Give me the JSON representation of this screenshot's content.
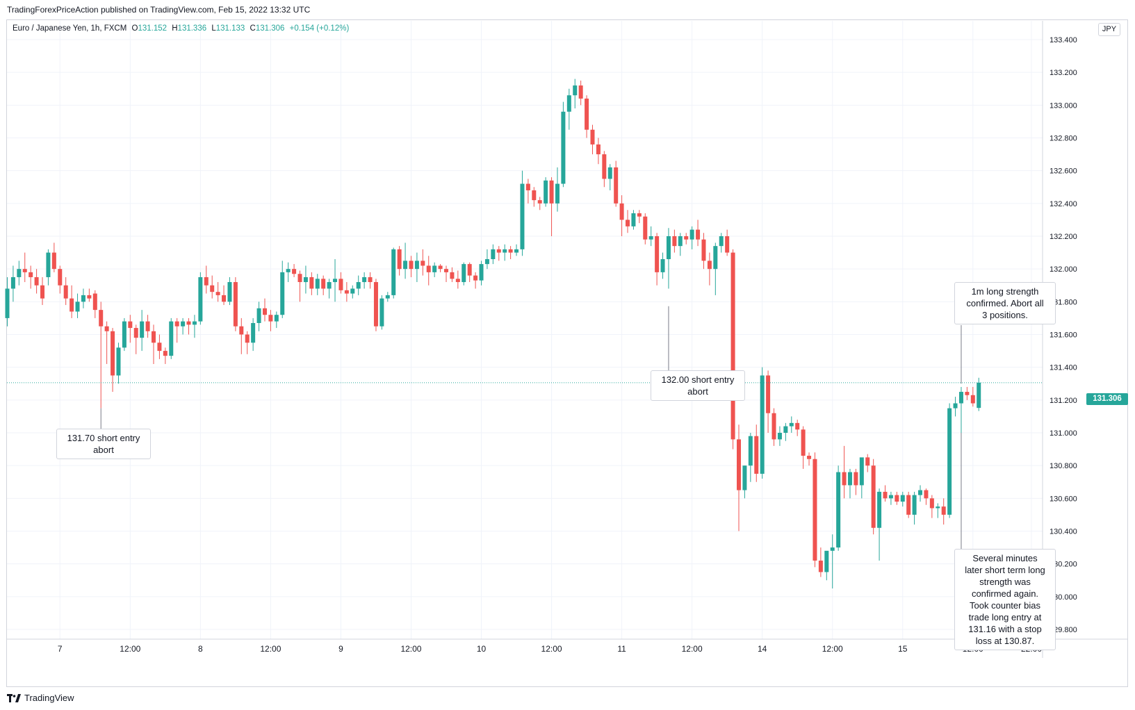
{
  "header": {
    "published_line": "TradingForexPriceAction published on TradingView.com, Feb 15, 2022 13:32 UTC"
  },
  "legend": {
    "symbol": "Euro / Japanese Yen, 1h, FXCM",
    "open_label": "O",
    "open": "131.152",
    "high_label": "H",
    "high": "131.336",
    "low_label": "L",
    "low": "131.133",
    "close_label": "C",
    "close": "131.306",
    "change": "+0.154 (+0.12%)"
  },
  "currency_badge": "JPY",
  "last_price_tag": "131.306",
  "notes": {
    "note1": [
      "131.70 short entry",
      "abort"
    ],
    "note2": [
      "132.00 short entry",
      "abort"
    ],
    "note3": [
      "1m long strength",
      "confirmed. Abort all",
      "3 positions."
    ],
    "note4": [
      "Several minutes",
      "later short term long",
      "strength was",
      "confirmed again.",
      "Took counter bias",
      "trade long entry at",
      "131.16 with a stop",
      "loss at 130.87."
    ]
  },
  "footer": {
    "brand": "TradingView"
  },
  "colors": {
    "up": "#26a69a",
    "down": "#ef5350",
    "grid": "#f0f3fa",
    "axis_text": "#131722",
    "border": "#d1d4dc"
  },
  "chart_data": {
    "type": "candlestick",
    "symbol": "EUR/JPY",
    "interval": "1h",
    "y_axis": {
      "min": 129.8,
      "max": 133.4,
      "step": 0.2,
      "tick_labels": [
        "133.400",
        "133.200",
        "133.000",
        "132.800",
        "132.600",
        "132.400",
        "132.200",
        "132.000",
        "131.800",
        "131.600",
        "131.400",
        "131.200",
        "131.000",
        "130.800",
        "130.600",
        "130.400",
        "130.200",
        "130.000",
        "129.800"
      ]
    },
    "x_axis": {
      "tick_labels": [
        "7",
        "12:00",
        "8",
        "12:00",
        "9",
        "12:00",
        "10",
        "12:00",
        "11",
        "12:00",
        "14",
        "12:00",
        "15",
        "12:00",
        "22:00"
      ],
      "tick_bar_index": [
        9,
        21,
        33,
        45,
        57,
        69,
        81,
        93,
        105,
        117,
        129,
        141,
        153,
        165,
        175
      ]
    },
    "last_price": 131.306,
    "grid": true,
    "candles": [
      [
        131.7,
        131.95,
        131.65,
        131.88
      ],
      [
        131.88,
        132.02,
        131.8,
        131.95
      ],
      [
        131.95,
        132.05,
        131.9,
        132.0
      ],
      [
        132.0,
        132.1,
        131.92,
        131.98
      ],
      [
        131.98,
        132.02,
        131.88,
        131.95
      ],
      [
        131.95,
        132.0,
        131.85,
        131.9
      ],
      [
        131.9,
        131.95,
        131.78,
        131.82
      ],
      [
        131.95,
        132.12,
        131.9,
        132.1
      ],
      [
        132.1,
        132.16,
        131.98,
        132.0
      ],
      [
        132.0,
        132.02,
        131.85,
        131.9
      ],
      [
        131.9,
        131.95,
        131.78,
        131.82
      ],
      [
        131.82,
        131.9,
        131.7,
        131.74
      ],
      [
        131.74,
        131.85,
        131.7,
        131.8
      ],
      [
        131.8,
        131.88,
        131.76,
        131.84
      ],
      [
        131.84,
        131.88,
        131.8,
        131.82
      ],
      [
        131.85,
        131.87,
        131.7,
        131.75
      ],
      [
        131.75,
        131.8,
        131.15,
        131.65
      ],
      [
        131.65,
        131.68,
        131.42,
        131.62
      ],
      [
        131.62,
        131.64,
        131.25,
        131.35
      ],
      [
        131.35,
        131.55,
        131.3,
        131.52
      ],
      [
        131.52,
        131.7,
        131.5,
        131.68
      ],
      [
        131.68,
        131.72,
        131.55,
        131.64
      ],
      [
        131.64,
        131.66,
        131.48,
        131.58
      ],
      [
        131.58,
        131.75,
        131.5,
        131.68
      ],
      [
        131.68,
        131.72,
        131.58,
        131.62
      ],
      [
        131.62,
        131.66,
        131.42,
        131.55
      ],
      [
        131.55,
        131.6,
        131.45,
        131.5
      ],
      [
        131.5,
        131.52,
        131.42,
        131.47
      ],
      [
        131.47,
        131.7,
        131.45,
        131.68
      ],
      [
        131.68,
        131.7,
        131.55,
        131.65
      ],
      [
        131.65,
        131.7,
        131.6,
        131.68
      ],
      [
        131.68,
        131.7,
        131.6,
        131.66
      ],
      [
        131.66,
        131.72,
        131.58,
        131.68
      ],
      [
        131.68,
        131.98,
        131.66,
        131.95
      ],
      [
        131.95,
        132.02,
        131.85,
        131.9
      ],
      [
        131.9,
        131.96,
        131.82,
        131.86
      ],
      [
        131.86,
        131.92,
        131.8,
        131.84
      ],
      [
        131.84,
        131.9,
        131.78,
        131.8
      ],
      [
        131.8,
        131.95,
        131.78,
        131.92
      ],
      [
        131.92,
        131.95,
        131.62,
        131.65
      ],
      [
        131.65,
        131.7,
        131.48,
        131.6
      ],
      [
        131.6,
        131.62,
        131.48,
        131.55
      ],
      [
        131.55,
        131.7,
        131.5,
        131.67
      ],
      [
        131.67,
        131.8,
        131.62,
        131.76
      ],
      [
        131.76,
        131.82,
        131.68,
        131.72
      ],
      [
        131.72,
        131.75,
        131.62,
        131.68
      ],
      [
        131.68,
        131.74,
        131.64,
        131.72
      ],
      [
        131.72,
        132.05,
        131.7,
        131.98
      ],
      [
        131.98,
        132.04,
        131.92,
        132.0
      ],
      [
        132.0,
        132.03,
        131.95,
        131.97
      ],
      [
        131.97,
        131.99,
        131.8,
        131.92
      ],
      [
        131.92,
        132.02,
        131.85,
        131.95
      ],
      [
        131.95,
        131.98,
        131.84,
        131.88
      ],
      [
        131.88,
        131.97,
        131.84,
        131.94
      ],
      [
        131.94,
        131.96,
        131.84,
        131.88
      ],
      [
        131.88,
        131.94,
        131.82,
        131.92
      ],
      [
        131.92,
        132.06,
        131.8,
        131.94
      ],
      [
        131.94,
        131.98,
        131.85,
        131.87
      ],
      [
        131.87,
        131.92,
        131.8,
        131.85
      ],
      [
        131.85,
        131.9,
        131.82,
        131.88
      ],
      [
        131.88,
        131.96,
        131.84,
        131.92
      ],
      [
        131.92,
        131.98,
        131.88,
        131.95
      ],
      [
        131.95,
        131.98,
        131.88,
        131.92
      ],
      [
        131.92,
        131.94,
        131.62,
        131.65
      ],
      [
        131.65,
        131.84,
        131.63,
        131.82
      ],
      [
        131.82,
        131.86,
        131.8,
        131.84
      ],
      [
        131.84,
        132.13,
        131.82,
        132.12
      ],
      [
        132.12,
        132.14,
        131.96,
        132.0
      ],
      [
        132.0,
        132.16,
        131.94,
        132.05
      ],
      [
        132.05,
        132.08,
        131.95,
        132.0
      ],
      [
        132.0,
        132.1,
        131.92,
        132.05
      ],
      [
        132.05,
        132.12,
        131.96,
        132.02
      ],
      [
        132.02,
        132.08,
        131.9,
        131.98
      ],
      [
        131.98,
        132.04,
        131.95,
        132.02
      ],
      [
        132.02,
        132.03,
        131.98,
        132.0
      ],
      [
        132.0,
        132.02,
        131.92,
        131.98
      ],
      [
        131.98,
        132.01,
        131.92,
        131.94
      ],
      [
        131.94,
        131.99,
        131.88,
        131.92
      ],
      [
        131.92,
        132.04,
        131.9,
        132.03
      ],
      [
        132.03,
        132.04,
        131.92,
        131.96
      ],
      [
        131.96,
        131.98,
        131.88,
        131.93
      ],
      [
        131.93,
        132.05,
        131.9,
        132.03
      ],
      [
        132.03,
        132.12,
        132.0,
        132.06
      ],
      [
        132.06,
        132.15,
        132.03,
        132.12
      ],
      [
        132.12,
        132.14,
        132.05,
        132.1
      ],
      [
        132.1,
        132.15,
        132.05,
        132.12
      ],
      [
        132.12,
        132.14,
        132.06,
        132.1
      ],
      [
        132.1,
        132.15,
        132.08,
        132.12
      ],
      [
        132.12,
        132.6,
        132.08,
        132.52
      ],
      [
        132.52,
        132.55,
        132.4,
        132.48
      ],
      [
        132.48,
        132.5,
        132.38,
        132.42
      ],
      [
        132.42,
        132.44,
        132.36,
        132.4
      ],
      [
        132.4,
        132.56,
        132.38,
        132.54
      ],
      [
        132.54,
        132.56,
        132.2,
        132.4
      ],
      [
        132.4,
        132.62,
        132.35,
        132.52
      ],
      [
        132.52,
        133.02,
        132.5,
        132.96
      ],
      [
        132.96,
        133.1,
        132.85,
        133.06
      ],
      [
        133.06,
        133.16,
        132.98,
        133.12
      ],
      [
        133.12,
        133.15,
        133.0,
        133.04
      ],
      [
        133.04,
        133.06,
        132.8,
        132.85
      ],
      [
        132.85,
        132.88,
        132.7,
        132.76
      ],
      [
        132.76,
        132.8,
        132.64,
        132.7
      ],
      [
        132.7,
        132.72,
        132.5,
        132.55
      ],
      [
        132.55,
        132.64,
        132.48,
        132.62
      ],
      [
        132.62,
        132.66,
        132.38,
        132.4
      ],
      [
        132.4,
        132.45,
        132.2,
        132.3
      ],
      [
        132.3,
        132.36,
        132.22,
        132.26
      ],
      [
        132.26,
        132.36,
        132.24,
        132.34
      ],
      [
        132.34,
        132.36,
        132.28,
        132.32
      ],
      [
        132.32,
        132.34,
        132.15,
        132.18
      ],
      [
        132.18,
        132.26,
        132.14,
        132.2
      ],
      [
        132.2,
        132.22,
        131.9,
        131.98
      ],
      [
        131.98,
        132.1,
        131.94,
        132.06
      ],
      [
        132.06,
        132.25,
        131.88,
        132.2
      ],
      [
        132.2,
        132.24,
        132.1,
        132.14
      ],
      [
        132.14,
        132.22,
        132.08,
        132.2
      ],
      [
        132.2,
        132.22,
        132.15,
        132.18
      ],
      [
        132.18,
        132.26,
        132.12,
        132.24
      ],
      [
        132.24,
        132.3,
        132.14,
        132.18
      ],
      [
        132.18,
        132.22,
        132.0,
        132.05
      ],
      [
        132.05,
        132.1,
        131.9,
        132.0
      ],
      [
        132.0,
        132.16,
        131.84,
        132.14
      ],
      [
        132.14,
        132.22,
        132.1,
        132.2
      ],
      [
        132.2,
        132.24,
        132.08,
        132.1
      ],
      [
        132.1,
        132.12,
        130.9,
        130.96
      ],
      [
        130.96,
        131.05,
        130.4,
        130.65
      ],
      [
        130.65,
        130.8,
        130.6,
        130.8
      ],
      [
        130.8,
        131.0,
        130.7,
        130.98
      ],
      [
        130.98,
        131.05,
        130.7,
        130.75
      ],
      [
        130.75,
        131.4,
        130.72,
        131.35
      ],
      [
        131.35,
        131.38,
        131.0,
        131.12
      ],
      [
        131.12,
        131.15,
        130.92,
        130.96
      ],
      [
        130.96,
        131.04,
        130.92,
        131.0
      ],
      [
        131.0,
        131.06,
        130.95,
        131.04
      ],
      [
        131.04,
        131.1,
        131.0,
        131.06
      ],
      [
        131.06,
        131.08,
        130.98,
        131.02
      ],
      [
        131.02,
        131.04,
        130.78,
        130.86
      ],
      [
        130.86,
        130.88,
        130.8,
        130.84
      ],
      [
        130.84,
        130.88,
        130.18,
        130.22
      ],
      [
        130.22,
        130.3,
        130.12,
        130.15
      ],
      [
        130.15,
        130.25,
        130.1,
        130.28
      ],
      [
        130.28,
        130.38,
        130.05,
        130.3
      ],
      [
        130.3,
        130.8,
        130.28,
        130.76
      ],
      [
        130.76,
        130.92,
        130.6,
        130.68
      ],
      [
        130.68,
        130.78,
        130.6,
        130.76
      ],
      [
        130.76,
        130.78,
        130.62,
        130.68
      ],
      [
        130.68,
        130.82,
        130.6,
        130.85
      ],
      [
        130.85,
        130.87,
        130.76,
        130.8
      ],
      [
        130.8,
        130.84,
        130.38,
        130.42
      ],
      [
        130.42,
        130.66,
        130.22,
        130.64
      ],
      [
        130.64,
        130.68,
        130.58,
        130.6
      ],
      [
        130.6,
        130.64,
        130.56,
        130.62
      ],
      [
        130.62,
        130.64,
        130.56,
        130.58
      ],
      [
        130.58,
        130.64,
        130.55,
        130.62
      ],
      [
        130.62,
        130.64,
        130.48,
        130.5
      ],
      [
        130.5,
        130.64,
        130.44,
        130.62
      ],
      [
        130.62,
        130.68,
        130.58,
        130.65
      ],
      [
        130.65,
        130.66,
        130.56,
        130.6
      ],
      [
        130.6,
        130.62,
        130.48,
        130.54
      ],
      [
        130.54,
        130.57,
        130.48,
        130.55
      ],
      [
        130.55,
        130.6,
        130.44,
        130.5
      ],
      [
        130.5,
        131.18,
        130.48,
        131.15
      ],
      [
        131.15,
        131.22,
        131.1,
        131.18
      ],
      [
        131.18,
        131.28,
        131.0,
        131.25
      ],
      [
        131.25,
        131.28,
        131.2,
        131.23
      ],
      [
        131.23,
        131.28,
        131.16,
        131.18
      ],
      [
        131.152,
        131.336,
        131.133,
        131.306
      ]
    ]
  }
}
